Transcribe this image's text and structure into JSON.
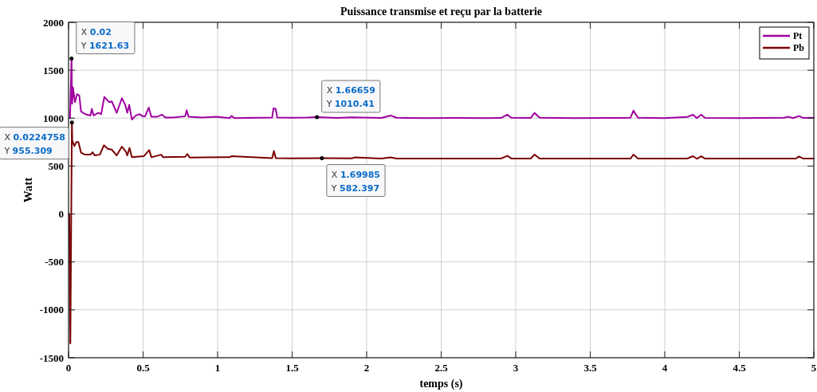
{
  "chart_data": {
    "type": "line",
    "title": "Puissance transmise et reçu par la batterie",
    "xlabel": "temps (s)",
    "ylabel": "Watt",
    "xlim": [
      0,
      5
    ],
    "xticks": [
      0,
      0.5,
      1,
      1.5,
      2,
      2.5,
      3,
      3.5,
      4,
      4.5,
      5
    ],
    "ylim": [
      -1500,
      2000
    ],
    "yticks": [
      -1500,
      -1000,
      -500,
      0,
      500,
      1000,
      1500,
      2000
    ],
    "grid": true,
    "legend": "top right",
    "line_style": "solid",
    "marker": "none",
    "series": [
      {
        "name": "Pt",
        "color": "#a000a0",
        "x": [
          0.01,
          0.02,
          0.024,
          0.03,
          0.043,
          0.057,
          0.072,
          0.084,
          0.111,
          0.147,
          0.156,
          0.168,
          0.2,
          0.219,
          0.24,
          0.272,
          0.29,
          0.323,
          0.358,
          0.38,
          0.394,
          0.407,
          0.425,
          0.452,
          0.478,
          0.496,
          0.514,
          0.538,
          0.556,
          0.595,
          0.627,
          0.649,
          0.703,
          0.783,
          0.792,
          0.806,
          0.9,
          0.99,
          1.08,
          1.093,
          1.115,
          1.366,
          1.375,
          1.39,
          1.4,
          1.5,
          1.6,
          1.66659,
          1.8,
          1.9,
          2.1,
          2.16,
          2.2,
          2.4,
          2.6,
          2.8,
          2.9,
          2.945,
          2.97,
          3.1,
          3.127,
          3.16,
          3.4,
          3.7,
          3.77,
          3.79,
          3.82,
          4.0,
          4.15,
          4.19,
          4.215,
          4.245,
          4.27,
          4.5,
          4.8,
          4.83,
          4.86,
          4.9,
          4.93,
          5
        ],
        "values": [
          1000,
          1621.63,
          1150,
          1320,
          1167,
          1250,
          1236,
          1070,
          1042,
          1028,
          1097,
          1028,
          1056,
          1042,
          1222,
          1167,
          1175,
          1056,
          1208,
          1139,
          1056,
          1139,
          986,
          1028,
          1042,
          1020,
          1020,
          1111,
          1014,
          1014,
          1036,
          1006,
          1006,
          1020,
          1083,
          1014,
          1006,
          1014,
          1000,
          1022,
          1000,
          1006,
          1103,
          1097,
          1006,
          1004,
          1006,
          1010.41,
          1003,
          1008,
          1002,
          1028,
          1004,
          1000,
          1003,
          1000,
          1002,
          1036,
          1004,
          1002,
          1055,
          1004,
          1000,
          1002,
          1005,
          1078,
          1004,
          1000,
          1012,
          1036,
          1000,
          1036,
          1002,
          1000,
          1004,
          1014,
          1000,
          1022,
          1002,
          1004
        ]
      },
      {
        "name": "Pb",
        "color": "#7a0000",
        "x": [
          0,
          0.005,
          0.012,
          0.0224758,
          0.025,
          0.039,
          0.052,
          0.066,
          0.084,
          0.111,
          0.147,
          0.161,
          0.176,
          0.21,
          0.237,
          0.263,
          0.29,
          0.323,
          0.358,
          0.384,
          0.394,
          0.409,
          0.425,
          0.505,
          0.541,
          0.556,
          0.622,
          0.634,
          0.783,
          0.797,
          0.813,
          1.08,
          1.093,
          1.366,
          1.378,
          1.39,
          1.5,
          1.69985,
          1.9,
          1.92,
          2.1,
          2.16,
          2.2,
          2.5,
          2.9,
          2.945,
          2.97,
          3.1,
          3.127,
          3.16,
          3.5,
          3.77,
          3.79,
          3.82,
          4.15,
          4.19,
          4.215,
          4.245,
          4.27,
          4.6,
          4.88,
          4.9,
          4.93,
          5
        ],
        "values": [
          0,
          0,
          -1350,
          955.309,
          764,
          708,
          750,
          750,
          639,
          619,
          619,
          644,
          611,
          619,
          717,
          680,
          672,
          611,
          703,
          653,
          611,
          689,
          592,
          603,
          667,
          592,
          619,
          592,
          597,
          625,
          589,
          592,
          603,
          583,
          658,
          583,
          580,
          582.397,
          580,
          590,
          578,
          590,
          578,
          578,
          578,
          607,
          579,
          578,
          620,
          579,
          578,
          578,
          620,
          579,
          578,
          603,
          576,
          603,
          578,
          578,
          578,
          600,
          578,
          578
        ]
      }
    ],
    "annotations": [
      {
        "text": "X 0.02\nY 1621.63",
        "x": 0.02,
        "y": 1621.63
      },
      {
        "text": "X 0.0224758\nY 955.309",
        "x": 0.0224758,
        "y": 955.309
      },
      {
        "text": "X 1.66659\nY 1010.41",
        "x": 1.66659,
        "y": 1010.41
      },
      {
        "text": "X 1.69985\nY 582.397",
        "x": 1.69985,
        "y": 582.397
      }
    ]
  }
}
